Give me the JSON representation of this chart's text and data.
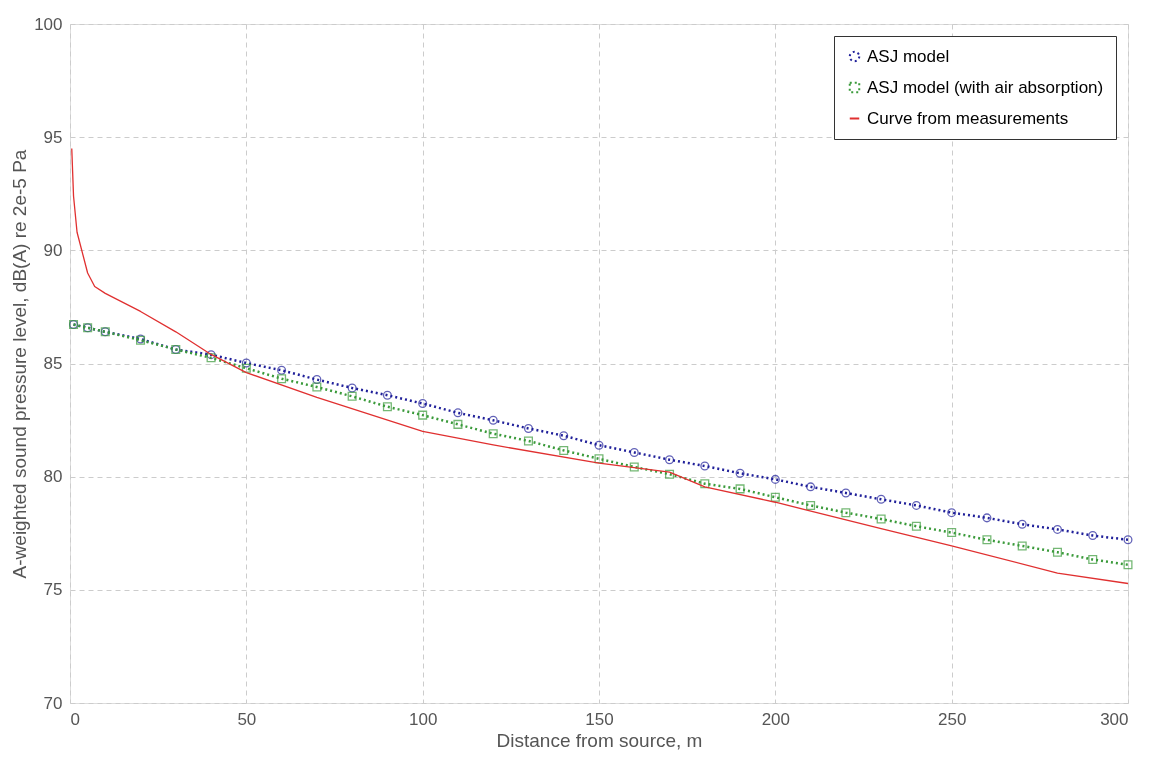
{
  "chart_data": {
    "type": "line",
    "xlabel": "Distance from source, m",
    "ylabel": "A-weighted sound pressure level,  dB(A) re 2e-5 Pa",
    "x": [
      1,
      5,
      10,
      20,
      30,
      40,
      50,
      60,
      70,
      80,
      90,
      100,
      110,
      120,
      130,
      140,
      150,
      160,
      170,
      180,
      190,
      200,
      210,
      220,
      230,
      240,
      250,
      260,
      270,
      280,
      290,
      300
    ],
    "series": [
      {
        "name": "ASJ model",
        "color": "#20209a",
        "marker": "circle",
        "line_style": "dotted",
        "values": [
          86.72,
          86.58,
          86.4,
          86.08,
          85.62,
          85.39,
          85.02,
          84.7,
          84.29,
          83.92,
          83.6,
          83.23,
          82.82,
          82.49,
          82.13,
          81.81,
          81.39,
          81.07,
          80.75,
          80.47,
          80.15,
          79.88,
          79.55,
          79.28,
          79.0,
          78.73,
          78.41,
          78.18,
          77.9,
          77.67,
          77.4,
          77.21
        ]
      },
      {
        "name": "ASJ model (with air absorption)",
        "color": "#3a9a3a",
        "marker": "square",
        "line_style": "dotted",
        "values": [
          86.72,
          86.58,
          86.4,
          86.03,
          85.62,
          85.25,
          84.79,
          84.33,
          83.96,
          83.55,
          83.09,
          82.72,
          82.31,
          81.9,
          81.58,
          81.16,
          80.79,
          80.43,
          80.11,
          79.69,
          79.46,
          79.09,
          78.73,
          78.41,
          78.13,
          77.81,
          77.53,
          77.21,
          76.94,
          76.66,
          76.34,
          76.11
        ]
      },
      {
        "name": "Curve from measurements",
        "color": "#e03030",
        "marker": "none",
        "line_style": "solid",
        "x": [
          0.5,
          1,
          2,
          5,
          7,
          10,
          20,
          30,
          40,
          50,
          70,
          100,
          120,
          150,
          170,
          180,
          200,
          230,
          250,
          280,
          300
        ],
        "values": [
          94.5,
          92.4,
          90.8,
          89.0,
          88.4,
          88.1,
          87.3,
          86.4,
          85.4,
          84.6,
          83.5,
          82.0,
          81.4,
          80.6,
          80.2,
          79.55,
          78.87,
          77.7,
          76.94,
          75.74,
          75.28
        ]
      }
    ],
    "xlim": [
      0,
      300
    ],
    "xticks": [
      0,
      50,
      100,
      150,
      200,
      250,
      300
    ],
    "ylim": [
      70,
      100
    ],
    "yticks": [
      70,
      75,
      80,
      85,
      90,
      95,
      100
    ],
    "grid": true,
    "legend": "top right"
  }
}
